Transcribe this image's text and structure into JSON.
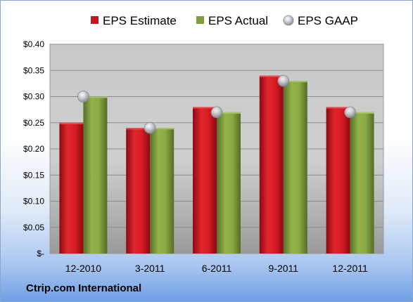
{
  "chart_data": {
    "type": "bar",
    "categories": [
      "12-2010",
      "3-2011",
      "6-2011",
      "9-2011",
      "12-2011"
    ],
    "series": [
      {
        "name": "EPS Estimate",
        "kind": "bar",
        "color": "#c8141c",
        "values": [
          0.25,
          0.24,
          0.28,
          0.34,
          0.28
        ]
      },
      {
        "name": "EPS Actual",
        "kind": "bar",
        "color": "#7e9e3a",
        "values": [
          0.3,
          0.24,
          0.27,
          0.33,
          0.27
        ]
      },
      {
        "name": "EPS GAAP",
        "kind": "marker",
        "color": "#b8bcc4",
        "values": [
          0.3,
          0.24,
          0.27,
          0.33,
          0.27
        ]
      }
    ],
    "y_ticks": [
      {
        "value": 0.4,
        "label": "$0.40"
      },
      {
        "value": 0.35,
        "label": "$0.35"
      },
      {
        "value": 0.3,
        "label": "$0.30"
      },
      {
        "value": 0.25,
        "label": "$0.25"
      },
      {
        "value": 0.2,
        "label": "$0.20"
      },
      {
        "value": 0.15,
        "label": "$0.15"
      },
      {
        "value": 0.1,
        "label": "$0.10"
      },
      {
        "value": 0.05,
        "label": "$0.05"
      },
      {
        "value": 0.0,
        "label": "$-"
      }
    ],
    "ylim": [
      0,
      0.4
    ],
    "grid": true,
    "legend": "top"
  },
  "footer": {
    "company": "Ctrip.com International"
  }
}
